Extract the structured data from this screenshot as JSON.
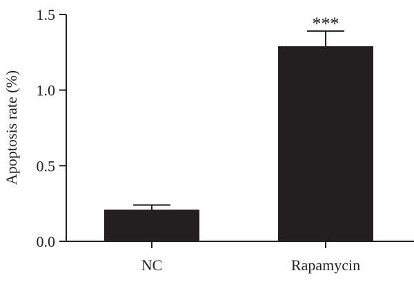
{
  "chart_data": {
    "type": "bar",
    "categories": [
      "NC",
      "Rapamycin"
    ],
    "values": [
      0.21,
      1.29
    ],
    "errors": [
      0.03,
      0.1
    ],
    "annotations": [
      "",
      "***"
    ],
    "title": "",
    "xlabel": "",
    "ylabel": "Apoptosis rate (%)",
    "ylim": [
      0,
      1.5
    ],
    "yticks": [
      0.0,
      0.5,
      1.0,
      1.5
    ],
    "ytick_labels": [
      "0.0",
      "0.5",
      "1.0",
      "1.5"
    ],
    "bar_color": "#231f20",
    "grid": false,
    "legend": "none"
  }
}
